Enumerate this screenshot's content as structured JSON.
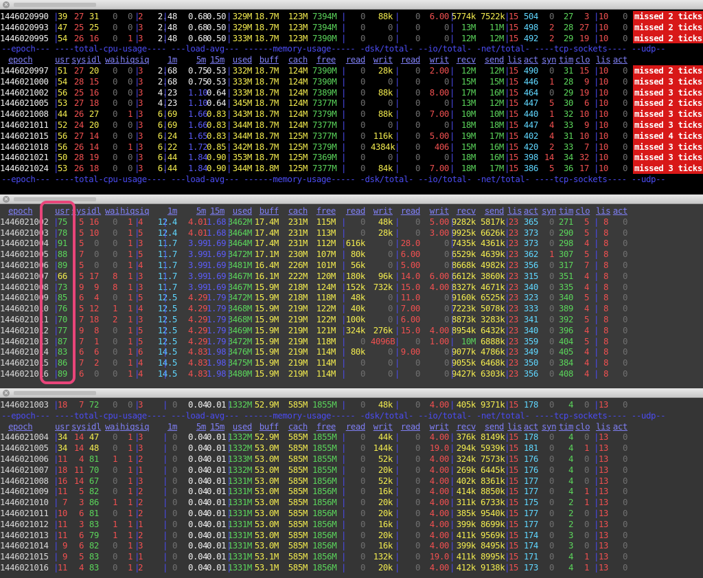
{
  "panes": [
    {
      "name": "pane-1",
      "header_row": "--epoch--- ----total-cpu-usage---- ---load-avg--- ------memory-usage----- -dsk/total- --io/total- -net/total- ----tcp-sockets---- --udp--",
      "columns": "  epoch   |usr sys idl wai hiq siq| 1m   5m  15m | used  buff  cach  free| read  writ| read  writ| recv  send|lis act syn tim clo|lis act"
    },
    {
      "name": "pane-2"
    },
    {
      "name": "pane-3"
    }
  ],
  "rows": {
    "p1a": [
      [
        "1446020990",
        "39",
        "27",
        "31",
        "0",
        "0",
        "2",
        "2.48",
        "0.68",
        "0.50",
        "329M",
        "18.7M",
        "123M",
        "7394M",
        "0",
        "88k",
        "0",
        "6.00",
        "5774k",
        "7522k",
        "15",
        "504",
        "0",
        "27",
        "3",
        "10",
        "0",
        "missed 2 ticks"
      ],
      [
        "1446020993",
        "47",
        "25",
        "25",
        "0",
        "0",
        "3",
        "2.48",
        "0.68",
        "0.50",
        "329M",
        "18.7M",
        "123M",
        "7394M",
        "0",
        "0",
        "0",
        "0",
        "13M",
        "11M",
        "15",
        "498",
        "2",
        "28",
        "27",
        "10",
        "0",
        "missed 2 ticks"
      ],
      [
        "1446020995",
        "54",
        "26",
        "16",
        "0",
        "1",
        "3",
        "2.48",
        "0.68",
        "0.50",
        "333M",
        "18.7M",
        "123M",
        "7390M",
        "0",
        "0",
        "0",
        "0",
        "12M",
        "12M",
        "15",
        "492",
        "2",
        "29",
        "19",
        "10",
        "0",
        "missed 2 ticks"
      ]
    ],
    "p1b": [
      [
        "1446020997",
        "51",
        "27",
        "20",
        "0",
        "0",
        "3",
        "2.68",
        "0.75",
        "0.53",
        "332M",
        "18.7M",
        "124M",
        "7390M",
        "0",
        "28k",
        "0",
        "2.00",
        "12M",
        "12M",
        "15",
        "490",
        "0",
        "31",
        "15",
        "10",
        "0",
        "missed 2 ticks"
      ],
      [
        "1446021000",
        "54",
        "28",
        "15",
        "0",
        "0",
        "3",
        "2.68",
        "0.75",
        "0.53",
        "333M",
        "18.7M",
        "124M",
        "7390M",
        "0",
        "0",
        "0",
        "0",
        "15M",
        "15M",
        "15",
        "446",
        "1",
        "28",
        "9",
        "10",
        "0",
        "missed 3 ticks"
      ],
      [
        "1446021002",
        "56",
        "25",
        "16",
        "0",
        "0",
        "3",
        "4.23",
        "1.10",
        "0.64",
        "333M",
        "18.7M",
        "124M",
        "7389M",
        "0",
        "88k",
        "0",
        "8.00",
        "17M",
        "16M",
        "15",
        "464",
        "0",
        "29",
        "19",
        "10",
        "0",
        "missed 3 ticks"
      ],
      [
        "1446021005",
        "53",
        "27",
        "18",
        "0",
        "0",
        "3",
        "4.23",
        "1.10",
        "0.64",
        "345M",
        "18.7M",
        "124M",
        "7377M",
        "0",
        "0",
        "0",
        "0",
        "13M",
        "12M",
        "15",
        "447",
        "5",
        "30",
        "6",
        "10",
        "0",
        "missed 2 ticks"
      ],
      [
        "1446021008",
        "44",
        "26",
        "27",
        "0",
        "1",
        "3",
        "6.69",
        "1.66",
        "0.83",
        "343M",
        "18.7M",
        "124M",
        "7379M",
        "0",
        "88k",
        "0",
        "7.00",
        "10M",
        "10M",
        "15",
        "440",
        "1",
        "32",
        "10",
        "10",
        "0",
        "missed 3 ticks"
      ],
      [
        "1446021011",
        "52",
        "24",
        "20",
        "0",
        "0",
        "3",
        "6.69",
        "1.66",
        "0.83",
        "344M",
        "18.7M",
        "124M",
        "7377M",
        "0",
        "0",
        "0",
        "0",
        "18M",
        "18M",
        "15",
        "447",
        "4",
        "33",
        "9",
        "10",
        "0",
        "missed 3 ticks"
      ],
      [
        "1446021015",
        "56",
        "27",
        "14",
        "0",
        "0",
        "3",
        "6.24",
        "1.65",
        "0.83",
        "344M",
        "18.7M",
        "125M",
        "7377M",
        "0",
        "116k",
        "0",
        "5.00",
        "19M",
        "17M",
        "15",
        "402",
        "4",
        "31",
        "10",
        "10",
        "0",
        "missed 4 ticks"
      ],
      [
        "1446021018",
        "56",
        "26",
        "14",
        "0",
        "1",
        "3",
        "6.22",
        "1.72",
        "0.85",
        "342M",
        "18.7M",
        "125M",
        "7379M",
        "0",
        "4384k",
        "0",
        "406",
        "15M",
        "16M",
        "15",
        "420",
        "2",
        "33",
        "7",
        "10",
        "0",
        "missed 3 ticks"
      ],
      [
        "1446021021",
        "50",
        "28",
        "19",
        "0",
        "0",
        "3",
        "6.44",
        "1.84",
        "0.90",
        "353M",
        "18.7M",
        "125M",
        "7369M",
        "0",
        "0",
        "0",
        "0",
        "18M",
        "16M",
        "15",
        "398",
        "14",
        "34",
        "32",
        "10",
        "0",
        "missed 3 ticks"
      ],
      [
        "1446021024",
        "53",
        "26",
        "18",
        "0",
        "0",
        "3",
        "6.44",
        "1.84",
        "0.90",
        "344M",
        "18.8M",
        "125M",
        "7377M",
        "0",
        "84k",
        "0",
        "7.00",
        "18M",
        "17M",
        "15",
        "386",
        "5",
        "36",
        "17",
        "10",
        "0",
        "missed 3 ticks"
      ]
    ],
    "p2": [
      [
        "1446021002",
        "75",
        "5",
        "16",
        "0",
        "1",
        "4",
        "12.4",
        "4.01",
        "1.68",
        "3462M",
        "17.4M",
        "231M",
        "115M",
        "0",
        "48k",
        "0",
        "5.00",
        "9282k",
        "5817k",
        "23",
        "365",
        "0",
        "271",
        "5",
        "8",
        "0"
      ],
      [
        "1446021003",
        "78",
        "5",
        "10",
        "0",
        "1",
        "5",
        "12.4",
        "4.01",
        "1.68",
        "3464M",
        "17.4M",
        "231M",
        "113M",
        "0",
        "28k",
        "0",
        "3.00",
        "9925k",
        "6626k",
        "23",
        "373",
        "0",
        "290",
        "5",
        "8",
        "0"
      ],
      [
        "1446021004",
        "91",
        "5",
        "0",
        "0",
        "1",
        "3",
        "11.7",
        "3.99",
        "1.69",
        "3464M",
        "17.4M",
        "231M",
        "112M",
        "616k",
        "0",
        "28.0",
        "0",
        "7435k",
        "4361k",
        "23",
        "373",
        "0",
        "298",
        "4",
        "8",
        "0"
      ],
      [
        "1446021005",
        "88",
        "7",
        "0",
        "0",
        "1",
        "5",
        "11.7",
        "3.99",
        "1.69",
        "3472M",
        "17.1M",
        "230M",
        "107M",
        "80k",
        "0",
        "6.00",
        "0",
        "6529k",
        "4639k",
        "23",
        "362",
        "1",
        "307",
        "5",
        "8",
        "0"
      ],
      [
        "1446021006",
        "89",
        "5",
        "0",
        "0",
        "1",
        "4",
        "11.7",
        "3.99",
        "1.69",
        "3481M",
        "16.4M",
        "226M",
        "101M",
        "56k",
        "0",
        "5.00",
        "0",
        "8668k",
        "4982k",
        "23",
        "356",
        "0",
        "317",
        "7",
        "8",
        "0"
      ],
      [
        "1446021007",
        "66",
        "5",
        "17",
        "8",
        "1",
        "3",
        "11.7",
        "3.99",
        "1.69",
        "3467M",
        "16.1M",
        "222M",
        "120M",
        "180k",
        "96k",
        "14.0",
        "6.00",
        "6612k",
        "3860k",
        "23",
        "315",
        "0",
        "351",
        "4",
        "8",
        "0"
      ],
      [
        "1446021008",
        "73",
        "9",
        "9",
        "8",
        "1",
        "3",
        "11.7",
        "3.99",
        "1.69",
        "3467M",
        "15.9M",
        "218M",
        "124M",
        "152k",
        "732k",
        "15.0",
        "4.00",
        "8327k",
        "4671k",
        "23",
        "340",
        "0",
        "335",
        "4",
        "8",
        "0"
      ],
      [
        "1446021009",
        "85",
        "6",
        "4",
        "0",
        "1",
        "5",
        "12.5",
        "4.29",
        "1.79",
        "3472M",
        "15.9M",
        "218M",
        "118M",
        "48k",
        "0",
        "11.0",
        "0",
        "9160k",
        "6525k",
        "23",
        "323",
        "0",
        "340",
        "5",
        "8",
        "0"
      ],
      [
        "1446021010",
        "76",
        "5",
        "12",
        "1",
        "1",
        "4",
        "12.5",
        "4.29",
        "1.79",
        "3468M",
        "15.9M",
        "219M",
        "122M",
        "40k",
        "0",
        "7.00",
        "0",
        "7223k",
        "5078k",
        "23",
        "333",
        "0",
        "389",
        "4",
        "8",
        "0"
      ],
      [
        "1446021011",
        "70",
        "7",
        "18",
        "2",
        "1",
        "3",
        "12.5",
        "4.29",
        "1.79",
        "3468M",
        "15.9M",
        "219M",
        "122M",
        "100k",
        "0",
        "6.00",
        "0",
        "8873k",
        "3283k",
        "23",
        "341",
        "0",
        "392",
        "5",
        "8",
        "0"
      ],
      [
        "1446021012",
        "77",
        "9",
        "8",
        "0",
        "1",
        "5",
        "12.5",
        "4.29",
        "1.79",
        "3469M",
        "15.9M",
        "219M",
        "121M",
        "324k",
        "276k",
        "15.0",
        "4.00",
        "8954k",
        "6432k",
        "23",
        "340",
        "0",
        "396",
        "4",
        "8",
        "0"
      ],
      [
        "1446021013",
        "87",
        "7",
        "1",
        "0",
        "1",
        "5",
        "12.5",
        "4.29",
        "1.79",
        "3472M",
        "15.9M",
        "219M",
        "118M",
        "0",
        "4096B",
        "0",
        "1.00",
        "10M",
        "6888k",
        "23",
        "359",
        "0",
        "404",
        "5",
        "8",
        "0"
      ],
      [
        "1446021014",
        "83",
        "6",
        "6",
        "0",
        "1",
        "6",
        "14.5",
        "4.83",
        "1.98",
        "3476M",
        "15.9M",
        "219M",
        "114M",
        "80k",
        "0",
        "9.00",
        "0",
        "9077k",
        "4786k",
        "23",
        "349",
        "0",
        "405",
        "4",
        "8",
        "0"
      ],
      [
        "1446021015",
        "86",
        "7",
        "2",
        "0",
        "1",
        "4",
        "14.5",
        "4.83",
        "1.98",
        "3475M",
        "15.9M",
        "219M",
        "114M",
        "0",
        "0",
        "0",
        "0",
        "9055k",
        "6468k",
        "23",
        "350",
        "0",
        "384",
        "4",
        "8",
        "0"
      ],
      [
        "1446021016",
        "89",
        "6",
        "0",
        "0",
        "1",
        "4",
        "14.5",
        "4.83",
        "1.98",
        "3480M",
        "15.9M",
        "219M",
        "114M",
        "0",
        "0",
        "0",
        "0",
        "9427k",
        "6303k",
        "23",
        "356",
        "0",
        "408",
        "4",
        "8",
        "0"
      ]
    ],
    "p3a": [
      [
        "1446021003",
        "18",
        "7",
        "72",
        "0",
        "0",
        "3",
        "0",
        "0.04",
        "0.01",
        "1332M",
        "52.9M",
        "585M",
        "1855M",
        "0",
        "48k",
        "0",
        "4.00",
        "405k",
        "9371k",
        "15",
        "178",
        "0",
        "4",
        "0",
        "13",
        "0"
      ]
    ],
    "p3b": [
      [
        "1446021004",
        "34",
        "14",
        "47",
        "0",
        "1",
        "3",
        "0",
        "0.04",
        "0.01",
        "1332M",
        "52.9M",
        "585M",
        "1855M",
        "0",
        "44k",
        "0",
        "4.00",
        "376k",
        "8149k",
        "15",
        "178",
        "0",
        "4",
        "0",
        "13",
        "0"
      ],
      [
        "1446021005",
        "34",
        "14",
        "48",
        "0",
        "1",
        "3",
        "0",
        "0.04",
        "0.01",
        "1332M",
        "53.0M",
        "585M",
        "1855M",
        "0",
        "144k",
        "0",
        "19.0",
        "294k",
        "5939k",
        "15",
        "181",
        "0",
        "4",
        "1",
        "13",
        "0"
      ],
      [
        "1446021006",
        "11",
        "4",
        "81",
        "1",
        "1",
        "2",
        "0",
        "0.04",
        "0.01",
        "1333M",
        "53.0M",
        "585M",
        "1855M",
        "0",
        "52k",
        "0",
        "4.00",
        "324k",
        "7573k",
        "15",
        "176",
        "0",
        "4",
        "0",
        "13",
        "0"
      ],
      [
        "1446021007",
        "18",
        "11",
        "70",
        "0",
        "1",
        "1",
        "0",
        "0.04",
        "0.01",
        "1332M",
        "53.0M",
        "585M",
        "1855M",
        "0",
        "20k",
        "0",
        "4.00",
        "269k",
        "6445k",
        "15",
        "176",
        "0",
        "4",
        "0",
        "13",
        "0"
      ],
      [
        "1446021008",
        "16",
        "14",
        "67",
        "0",
        "1",
        "3",
        "0",
        "0.04",
        "0.01",
        "1331M",
        "53.0M",
        "585M",
        "1856M",
        "0",
        "52k",
        "0",
        "4.00",
        "402k",
        "8361k",
        "15",
        "177",
        "0",
        "4",
        "0",
        "13",
        "0"
      ],
      [
        "1446021009",
        "11",
        "5",
        "82",
        "0",
        "1",
        "2",
        "0",
        "0.04",
        "0.01",
        "1331M",
        "53.0M",
        "585M",
        "1856M",
        "0",
        "16k",
        "0",
        "4.00",
        "414k",
        "8850k",
        "15",
        "177",
        "0",
        "4",
        "1",
        "13",
        "0"
      ],
      [
        "1446021010",
        "7",
        "3",
        "86",
        "1",
        "1",
        "2",
        "0",
        "0.04",
        "0.01",
        "1331M",
        "53.0M",
        "585M",
        "1856M",
        "0",
        "20k",
        "0",
        "4.00",
        "311k",
        "6733k",
        "15",
        "175",
        "0",
        "2",
        "1",
        "13",
        "0"
      ],
      [
        "1446021011",
        "10",
        "6",
        "81",
        "0",
        "1",
        "2",
        "0",
        "0.04",
        "0.01",
        "1331M",
        "53.0M",
        "585M",
        "1856M",
        "0",
        "20k",
        "0",
        "4.00",
        "385k",
        "9540k",
        "15",
        "177",
        "0",
        "2",
        "0",
        "13",
        "0"
      ],
      [
        "1446021012",
        "11",
        "3",
        "83",
        "1",
        "1",
        "1",
        "0",
        "0.04",
        "0.01",
        "1331M",
        "53.0M",
        "585M",
        "1856M",
        "0",
        "16k",
        "0",
        "4.00",
        "399k",
        "8699k",
        "15",
        "177",
        "0",
        "2",
        "0",
        "13",
        "0"
      ],
      [
        "1446021013",
        "11",
        "6",
        "79",
        "1",
        "1",
        "2",
        "0",
        "0.04",
        "0.01",
        "1331M",
        "53.0M",
        "585M",
        "1856M",
        "0",
        "20k",
        "0",
        "4.00",
        "411k",
        "9569k",
        "15",
        "174",
        "0",
        "3",
        "0",
        "13",
        "0"
      ],
      [
        "1446021014",
        "9",
        "6",
        "82",
        "0",
        "1",
        "3",
        "0",
        "0.04",
        "0.01",
        "1331M",
        "53.0M",
        "585M",
        "1856M",
        "0",
        "16k",
        "0",
        "4.00",
        "399k",
        "8495k",
        "15",
        "174",
        "0",
        "3",
        "0",
        "13",
        "0"
      ],
      [
        "1446021015",
        "9",
        "5",
        "83",
        "0",
        "1",
        "1",
        "0",
        "0.04",
        "0.01",
        "1331M",
        "53.1M",
        "585M",
        "1856M",
        "0",
        "132k",
        "0",
        "19.0",
        "411k",
        "8995k",
        "15",
        "171",
        "0",
        "4",
        "1",
        "13",
        "0"
      ],
      [
        "1446021016",
        "11",
        "4",
        "83",
        "0",
        "1",
        "2",
        "0",
        "0.04",
        "0.01",
        "1331M",
        "53.1M",
        "585M",
        "1856M",
        "0",
        "20k",
        "0",
        "4.00",
        "412k",
        "9138k",
        "15",
        "173",
        "0",
        "4",
        "1",
        "13",
        "0"
      ]
    ]
  },
  "labels": {
    "group": "--epoch--- ----total-cpu-usage---- ---load-avg--- ------memory-usage----- -dsk/total- --io/total- -net/total- ----tcp-sockets---- --udp--",
    "cols": [
      "epoch",
      "usr",
      "sys",
      "idl",
      "wai",
      "hiq",
      "siq",
      "1m",
      "5m",
      "15m",
      "used",
      "buff",
      "cach",
      "free",
      "read",
      "writ",
      "read",
      "writ",
      "recv",
      "send",
      "lis",
      "act",
      "syn",
      "tim",
      "clo",
      "lis",
      "act"
    ]
  },
  "highlight": {
    "label": "usr column highlight"
  }
}
